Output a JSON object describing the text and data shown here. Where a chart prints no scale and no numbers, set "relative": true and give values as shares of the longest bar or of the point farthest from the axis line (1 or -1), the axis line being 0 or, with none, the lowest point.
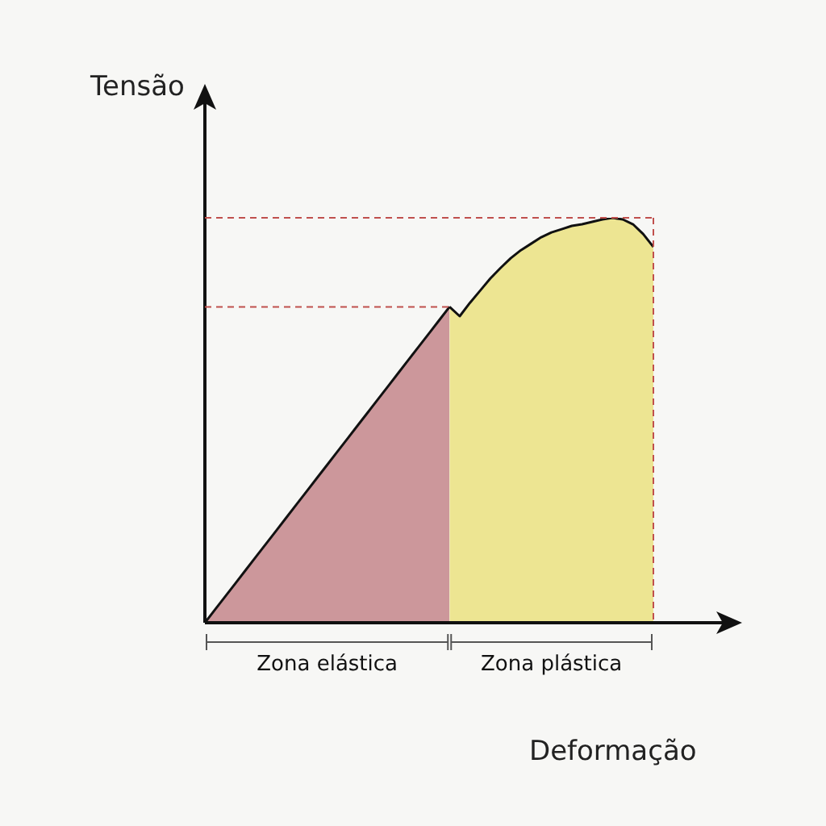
{
  "chart_data": {
    "type": "area",
    "relative": true,
    "xlabel": "Deformação",
    "ylabel": "Tensão",
    "legend": false,
    "categories": [
      null,
      null,
      null,
      null,
      null,
      null,
      null,
      null,
      null,
      null,
      null,
      null,
      null,
      null,
      null,
      null,
      null,
      null,
      null,
      null,
      null,
      null,
      null,
      null,
      null,
      null,
      null,
      null,
      null,
      null,
      null,
      null,
      null,
      null,
      null,
      null,
      null,
      null,
      null,
      null,
      null,
      null,
      null,
      null,
      null
    ],
    "series": [
      {
        "name": "Zona elástica",
        "color": "#cc979b",
        "values": [
          0,
          0.0325,
          0.065,
          0.0975,
          0.13,
          0.1625,
          0.195,
          0.2275,
          0.26,
          0.2925,
          0.325,
          0.3575,
          0.39,
          0.4225,
          0.455,
          0.4875,
          0.52,
          0.5525,
          0.585,
          0.6175,
          0.65,
          0.6825,
          0.715,
          0.7475,
          0.78,
          null,
          null,
          null,
          null,
          null,
          null,
          null,
          null,
          null,
          null,
          null,
          null,
          null,
          null,
          null,
          null,
          null,
          null,
          null,
          null
        ]
      },
      {
        "name": "Zona plástica",
        "color": "#ede592",
        "values": [
          null,
          null,
          null,
          null,
          null,
          null,
          null,
          null,
          null,
          null,
          null,
          null,
          null,
          null,
          null,
          null,
          null,
          null,
          null,
          null,
          null,
          null,
          null,
          null,
          0.78,
          0.757,
          0.79,
          0.82,
          0.85,
          0.876,
          0.9,
          0.92,
          0.936,
          0.952,
          0.964,
          0.972,
          0.98,
          0.984,
          0.99,
          0.996,
          1,
          0.996,
          0.984,
          0.96,
          0.928
        ]
      }
    ],
    "ref_lines": [
      {
        "axis": "y",
        "value": 1,
        "color": "#c0504d",
        "line_style": "dashed"
      },
      {
        "axis": "y",
        "value": 0.78,
        "color": "#c0504d",
        "line_style": "dashed"
      }
    ]
  }
}
